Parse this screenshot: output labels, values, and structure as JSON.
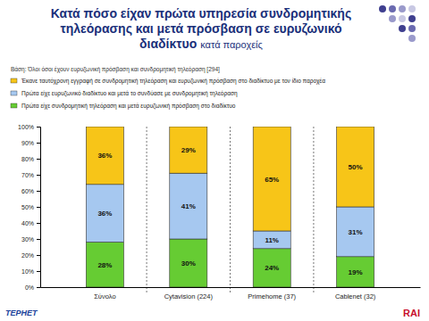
{
  "chart_data": {
    "type": "bar",
    "stacked": true,
    "title": "Κατά πόσο είχαν πρώτα υπηρεσία συνδρομητικής τηλεόρασης και μετά πρόσβαση σε ευρυζωνικό διαδίκτυο",
    "subtitle": "κατά παροχείς",
    "note": "Βάση: Όλοι όσοι έχουν ευρυζωνική πρόσβαση και συνδρομητική τηλεόραση [294]",
    "annotations": [
      "ΤΕΡΗΕΤ",
      "RAI"
    ],
    "categories": [
      "Σύνολο",
      "Cytavision (224)",
      "Primehome (37)",
      "Cablenet (32)"
    ],
    "series": [
      {
        "name": "Πρώτα είχε συνδρομητική τηλεόραση και μετά ευρυζωνική πρόσβαση στο διαδίκτυο",
        "color": "#66cc33",
        "values": [
          28,
          30,
          24,
          19
        ],
        "value_labels": [
          "28%",
          "30%",
          "24%",
          "19%"
        ]
      },
      {
        "name": "Πρώτα είχε ευρυζωνικό διαδίκτυο και μετά το συνδύασε με συνδρομητική τηλεόραση",
        "color": "#a6c8f0",
        "values": [
          36,
          41,
          11,
          31
        ],
        "value_labels": [
          "36%",
          "41%",
          "11%",
          "31%"
        ]
      },
      {
        "name": "Έκανε ταυτόχρονη εγγραφή σε συνδρομητική τηλεόραση και ευρυζωνική πρόσβαση στο διαδίκτυο με τον ίδιο παροχέα",
        "color": "#f7c518",
        "values": [
          36,
          29,
          65,
          50
        ],
        "value_labels": [
          "36%",
          "29%",
          "65%",
          "50%"
        ]
      }
    ],
    "ylim": [
      0,
      100
    ],
    "yticks": [
      {
        "value": 0,
        "label": "0%"
      },
      {
        "value": 10,
        "label": "10%"
      },
      {
        "value": 20,
        "label": "20%"
      },
      {
        "value": 30,
        "label": "30%"
      },
      {
        "value": 40,
        "label": "40%"
      },
      {
        "value": 50,
        "label": "50%"
      },
      {
        "value": 60,
        "label": "60%"
      },
      {
        "value": 70,
        "label": "70%"
      },
      {
        "value": 80,
        "label": "80%"
      },
      {
        "value": 90,
        "label": "90%"
      },
      {
        "value": 100,
        "label": "100%"
      }
    ],
    "grid": false,
    "data_labels": true,
    "legend": "top"
  }
}
